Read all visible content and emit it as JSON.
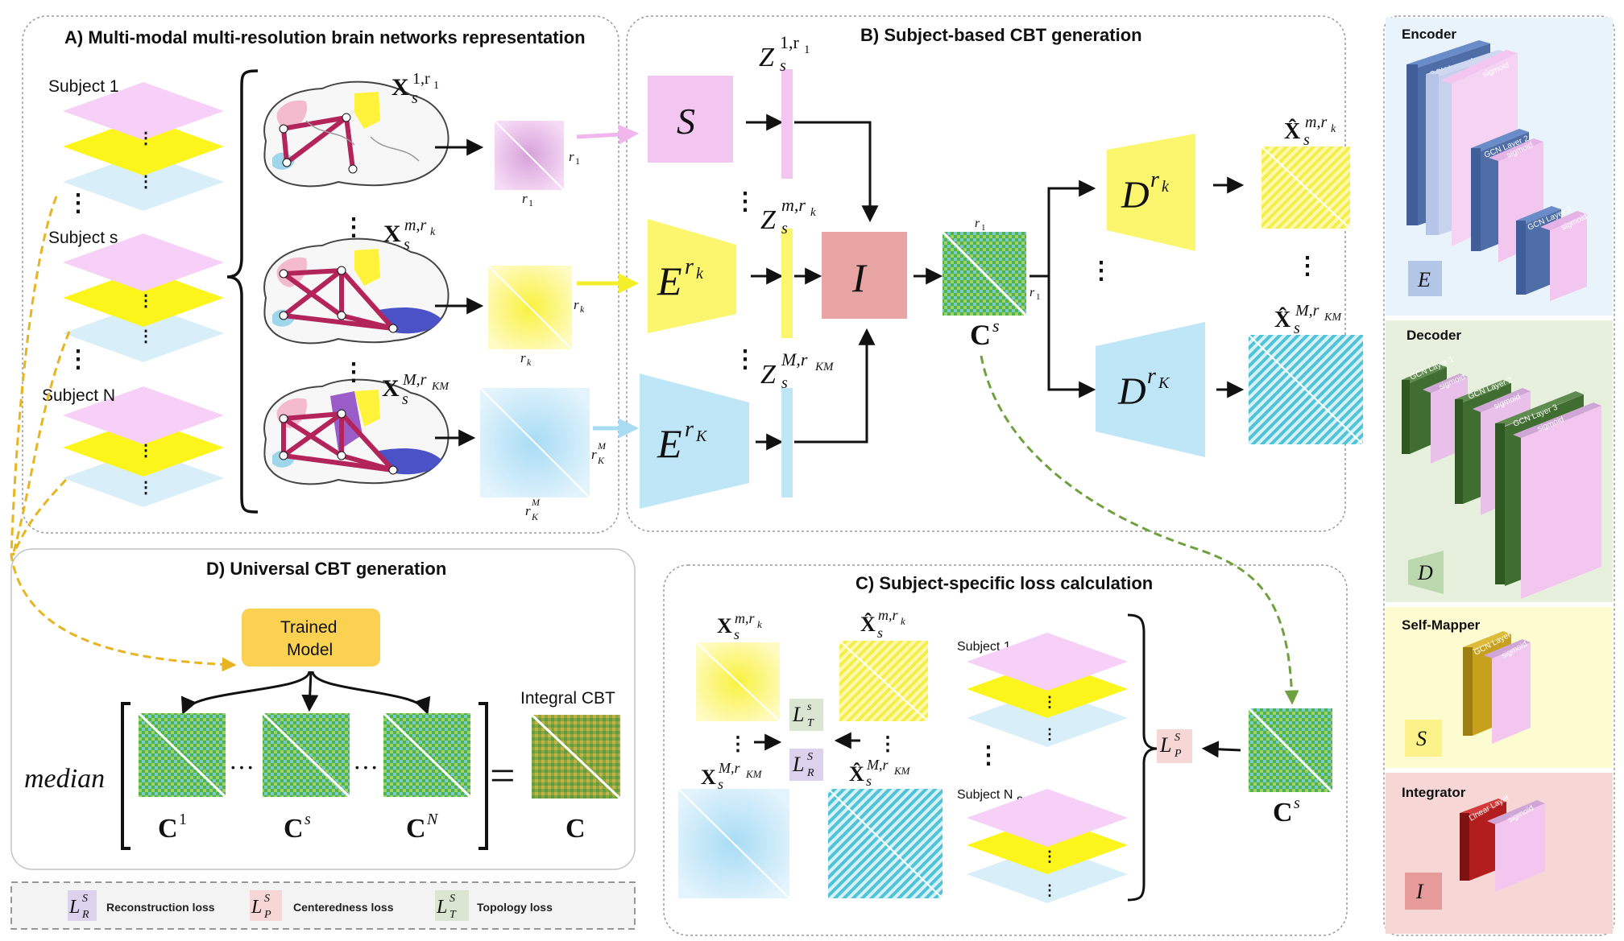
{
  "panels": {
    "a_title": "A) Multi-modal multi-resolution brain networks representation",
    "b_title": "B) Subject-based CBT generation",
    "c_title": "C) Subject-specific loss calculation",
    "d_title": "D) Universal CBT generation"
  },
  "panel_a": {
    "subject_1": "Subject 1",
    "subject_s": "Subject s",
    "subject_n": "Subject N",
    "x1_label": "X",
    "x1_sup": "1,r",
    "x1_sup_sub": "1",
    "x1_sub": "s",
    "xm_label": "X",
    "xm_sup": "m,r",
    "xm_sup_sub": "k",
    "xm_sub": "s",
    "xM_label": "X",
    "xM_sup": "M,r",
    "xM_sup_sub": "KM",
    "xM_sub": "s",
    "r1_side": "r",
    "r1_side_sub": "1",
    "r1_bottom": "r",
    "r1_bottom_sub": "1",
    "rk_side": "r",
    "rk_side_sub": "k",
    "rk_bottom": "r",
    "rk_bottom_sub": "k",
    "rK_side": "r",
    "rK_side_sub": "K",
    "rK_side_sup": "M",
    "rK_bottom": "r",
    "rK_bottom_sub": "K",
    "rK_bottom_sup": "M"
  },
  "panel_b": {
    "s_block": "S",
    "e_rk": "E",
    "e_rk_sup": "r",
    "e_rk_sup_sub": "k",
    "e_rK": "E",
    "e_rK_sup": "r",
    "e_rK_sup_sub": "K",
    "i_block": "I",
    "z1": "Z",
    "z1_sup": "1,r",
    "z1_sup_sub": "1",
    "z1_sub": "s",
    "zm": "Z",
    "zm_sup": "m,r",
    "zm_sup_sub": "k",
    "zm_sub": "s",
    "zM": "Z",
    "zM_sup": "M,r",
    "zM_sup_sub": "KM",
    "zM_sub": "s",
    "cs": "C",
    "cs_sup": "s",
    "cs_r1_top": "r",
    "cs_r1_top_sub": "1",
    "cs_r1_side": "r",
    "cs_r1_side_sub": "1",
    "d_rk": "D",
    "d_rk_sup": "r",
    "d_rk_sup_sub": "k",
    "d_rK": "D",
    "d_rK_sup": "r",
    "d_rK_sup_sub": "K",
    "xhat_m": "X̂",
    "xhat_m_sup": "m,r",
    "xhat_m_sup_sub": "k",
    "xhat_m_sub": "s",
    "xhat_M": "X̂",
    "xhat_M_sup": "M,r",
    "xhat_M_sup_sub": "KM",
    "xhat_M_sub": "s"
  },
  "panel_c": {
    "x_label": "X",
    "x_sup": "m,r",
    "x_sup_sub": "k",
    "x_sub": "s",
    "xhat_label": "X̂",
    "xhat_sup": "m,r",
    "xhat_sup_sub": "k",
    "xhat_sub": "s",
    "xM_label": "X",
    "xM_sup": "M,r",
    "xM_sup_sub": "KM",
    "xM_sub": "s",
    "xhatM_label": "X̂",
    "xhatM_sup": "M,r",
    "xhatM_sup_sub": "KM",
    "xhatM_sub": "s",
    "lt": "L",
    "lt_sub": "T",
    "lt_sup": "s",
    "lr": "L",
    "lr_sub": "R",
    "lr_sup": "S",
    "lp": "L",
    "lp_sub": "P",
    "lp_sup": "S",
    "subject_1": "Subject 1",
    "subject_ns": "Subject N",
    "subject_ns_sub": "s",
    "cs": "C",
    "cs_sup": "s"
  },
  "panel_d": {
    "trained_model_line1": "Trained",
    "trained_model_line2": "Model",
    "median": "median",
    "c1": "C",
    "c1_sup": "1",
    "cs": "C",
    "cs_sup": "s",
    "cN": "C",
    "cN_sup": "N",
    "integral_label": "Integral CBT",
    "c_final": "C",
    "ellipsis": "···",
    "equals": "="
  },
  "legend": {
    "lr": "L",
    "lr_sub": "R",
    "lr_sup": "S",
    "lr_text": "Reconstruction loss",
    "lp": "L",
    "lp_sub": "P",
    "lp_sup": "S",
    "lp_text": "Centeredness loss",
    "lt": "L",
    "lt_sub": "T",
    "lt_sup": "S",
    "lt_text": "Topology loss"
  },
  "sidebar": {
    "encoder_title": "Encoder",
    "encoder_symbol": "E",
    "encoder_layers": [
      "GCN Layer 1",
      "GCN Layer 2",
      "GCN Layer 3"
    ],
    "decoder_title": "Decoder",
    "decoder_symbol": "D",
    "decoder_layers": [
      "GCN Layer 1",
      "GCN Layer 2",
      "GCN Layer 3"
    ],
    "self_mapper_title": "Self-Mapper",
    "self_mapper_symbol": "S",
    "self_mapper_layer": "GCN Layer",
    "integrator_title": "Integrator",
    "integrator_symbol": "I",
    "integrator_layer": "Linear Layer",
    "sigmoid": "sigmoid"
  },
  "colors": {
    "pink": "#f2c6f0",
    "yellow": "#fbf66e",
    "blue": "#bfe6f7",
    "salmon": "#e8a5a3",
    "green": "#52b747",
    "orange_dash": "#e7b422",
    "green_dash": "#6fa03f",
    "encoder_blue": "#4f6ea8",
    "decoder_green": "#3f6e30",
    "self_yellow": "#c7a11e",
    "integrator_red": "#b21d1d"
  }
}
